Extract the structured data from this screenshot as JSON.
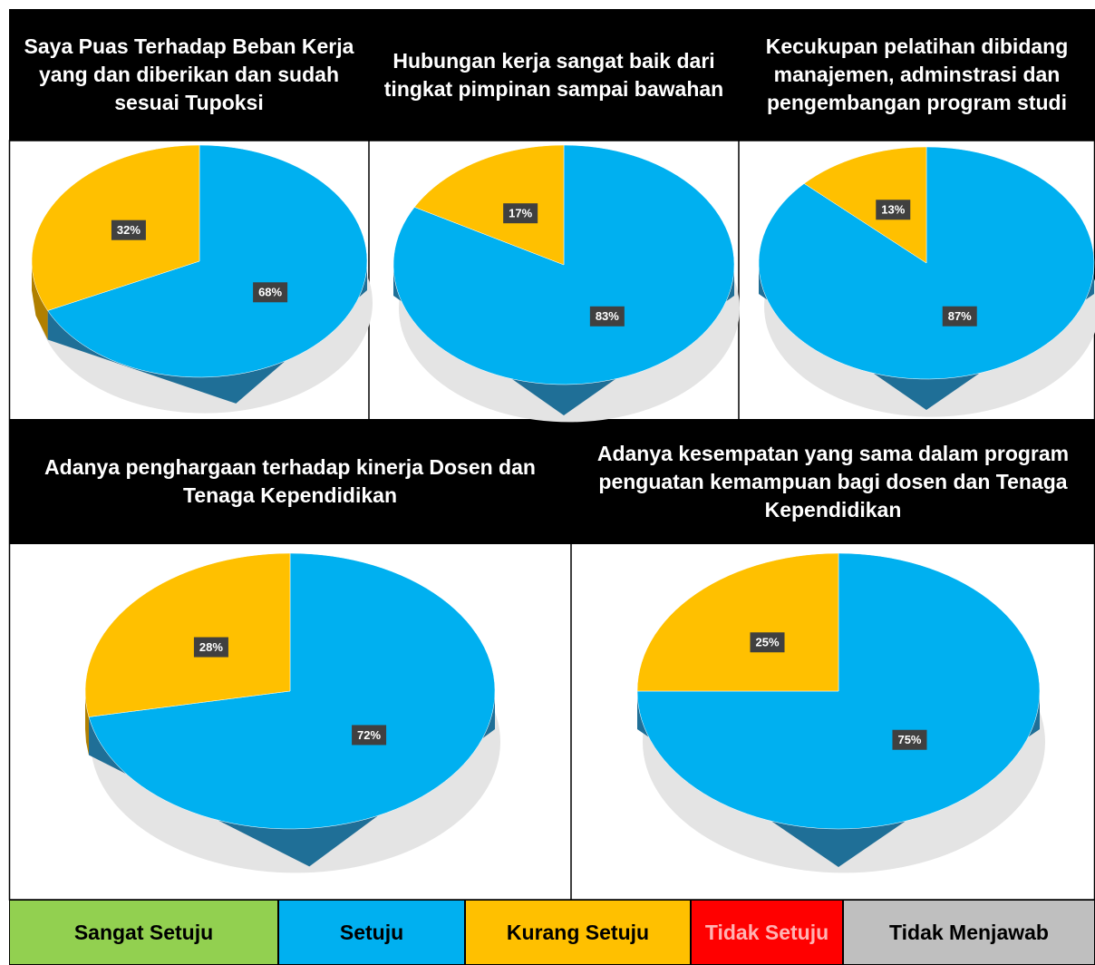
{
  "chart_data": [
    {
      "type": "pie",
      "title": "Saya Puas Terhadap Beban Kerja yang dan diberikan dan  sudah  sesuai Tupoksi",
      "values": [
        68,
        32
      ],
      "value_labels": [
        "68%",
        "32%"
      ],
      "colors": [
        "#00b0f0",
        "#ffc000"
      ]
    },
    {
      "type": "pie",
      "title": "Hubungan kerja sangat baik dari tingkat pimpinan sampai bawahan",
      "values": [
        83,
        17
      ],
      "value_labels": [
        "83%",
        "17%"
      ],
      "colors": [
        "#00b0f0",
        "#ffc000"
      ]
    },
    {
      "type": "pie",
      "title": "Kecukupan pelatihan dibidang manajemen, adminstrasi dan pengembangan program studi",
      "values": [
        87,
        13
      ],
      "value_labels": [
        "87%",
        "13%"
      ],
      "colors": [
        "#00b0f0",
        "#ffc000"
      ]
    },
    {
      "type": "pie",
      "title": "Adanya penghargaan terhadap kinerja Dosen dan Tenaga Kependidikan",
      "values": [
        72,
        28
      ],
      "value_labels": [
        "72%",
        "28%"
      ],
      "colors": [
        "#00b0f0",
        "#ffc000"
      ]
    },
    {
      "type": "pie",
      "title": "Adanya kesempatan yang sama dalam program penguatan kemampuan bagi dosen dan Tenaga Kependidikan",
      "values": [
        75,
        25
      ],
      "value_labels": [
        "75%",
        "25%"
      ],
      "colors": [
        "#00b0f0",
        "#ffc000"
      ]
    }
  ],
  "legend": {
    "labels": [
      "Sangat Setuju",
      "Setuju",
      "Kurang Setuju",
      "Tidak Setuju",
      "Tidak Menjawab"
    ],
    "colors": [
      "#92d050",
      "#00b0f0",
      "#ffc000",
      "#ff0000",
      "#bfbfbf"
    ]
  }
}
